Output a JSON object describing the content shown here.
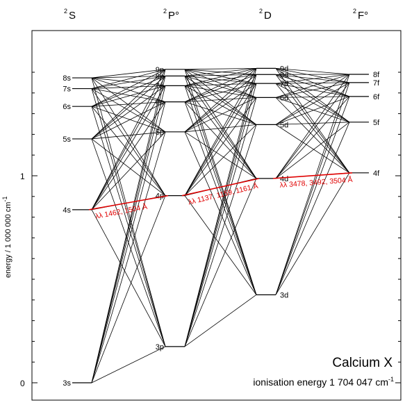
{
  "columns": [
    {
      "id": "S",
      "sup": "2",
      "label": "S"
    },
    {
      "id": "P",
      "sup": "2",
      "label": "P°"
    },
    {
      "id": "D",
      "sup": "2",
      "label": "D"
    },
    {
      "id": "F",
      "sup": "2",
      "label": "F°"
    }
  ],
  "axis": {
    "title": "energy / 1 000 000 cm",
    "title_sup": "-1",
    "tick_labels": [
      "0",
      "1"
    ]
  },
  "levels": {
    "S": [
      {
        "name": "3s",
        "energy": 0
      },
      {
        "name": "4s",
        "energy": 0.836
      },
      {
        "name": "5s",
        "energy": 1.178
      },
      {
        "name": "6s",
        "energy": 1.335
      },
      {
        "name": "7s",
        "energy": 1.421
      },
      {
        "name": "8s",
        "energy": 1.473
      }
    ],
    "P": [
      {
        "name": "3p",
        "energy": 0.175
      },
      {
        "name": "4p",
        "energy": 0.904
      },
      {
        "name": "5p",
        "energy": 1.212
      },
      {
        "name": "6p",
        "energy": 1.357
      },
      {
        "name": "7p",
        "energy": 1.435
      },
      {
        "name": "8p",
        "energy": 1.482
      },
      {
        "name": "9p",
        "energy": 1.514
      }
    ],
    "D": [
      {
        "name": "3d",
        "energy": 0.425
      },
      {
        "name": "4d",
        "energy": 0.987
      },
      {
        "name": "5d",
        "energy": 1.247
      },
      {
        "name": "6d",
        "energy": 1.378
      },
      {
        "name": "7d",
        "energy": 1.446
      },
      {
        "name": "8d",
        "energy": 1.489
      },
      {
        "name": "9d",
        "energy": 1.519
      }
    ],
    "F": [
      {
        "name": "4f",
        "energy": 1.014
      },
      {
        "name": "5f",
        "energy": 1.259
      },
      {
        "name": "6f",
        "energy": 1.383
      },
      {
        "name": "7f",
        "energy": 1.45
      },
      {
        "name": "8f",
        "energy": 1.49
      }
    ]
  },
  "highlighted_transitions": [
    {
      "from": "4s",
      "to": "4p",
      "label": "λλ 1462, 1504 Å"
    },
    {
      "from": "4p",
      "to": "4d",
      "label": "λλ 1137, 1159, 1161 Å"
    },
    {
      "from": "4d",
      "to": "4f",
      "label": "λλ 3478, 3492, 3504 Å"
    }
  ],
  "ion": {
    "name": "Calcium X",
    "ionisation_label": "ionisation energy 1 704 047  cm",
    "ionisation_sup": "-1"
  },
  "colors": {
    "highlight": "#e00000",
    "lines": "#000000"
  }
}
